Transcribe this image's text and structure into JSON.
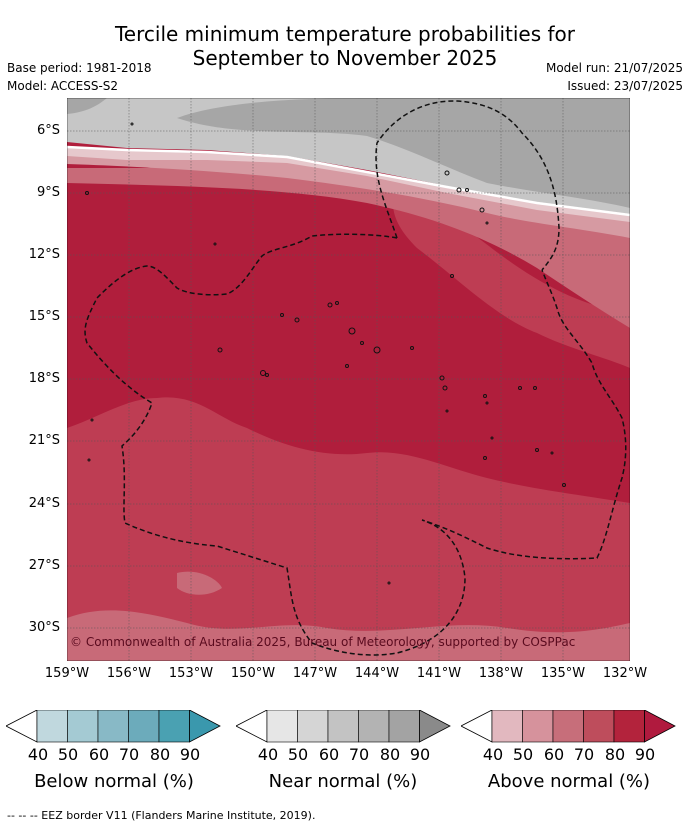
{
  "title_line1": "Tercile minimum temperature probabilities for",
  "title_line2": "September to November 2025",
  "base_period": "Base period: 1981-2018",
  "model": "Model: ACCESS-S2",
  "model_run": "Model run: 21/07/2025",
  "issued": "Issued: 23/07/2025",
  "copyright": "© Commonwealth of Australia 2025, Bureau of Meteorology, supported by COSPPac",
  "lat_labels": [
    "6°S",
    "9°S",
    "12°S",
    "15°S",
    "18°S",
    "21°S",
    "24°S",
    "27°S",
    "30°S"
  ],
  "lon_labels": [
    "159°W",
    "156°W",
    "153°W",
    "150°W",
    "147°W",
    "144°W",
    "141°W",
    "138°W",
    "135°W",
    "132°W"
  ],
  "colorbars": [
    {
      "label": "Below normal (%)",
      "ticks": [
        "40",
        "50",
        "60",
        "70",
        "80",
        "90"
      ],
      "colors": [
        "#ffffff",
        "#c0d8de",
        "#a4cad3",
        "#88b9c6",
        "#6cabbb",
        "#4aa1b2",
        "#3a98ad"
      ]
    },
    {
      "label": "Near normal (%)",
      "ticks": [
        "40",
        "50",
        "60",
        "70",
        "80",
        "90"
      ],
      "colors": [
        "#ffffff",
        "#e6e6e6",
        "#d5d5d5",
        "#c3c3c3",
        "#b3b3b3",
        "#a3a3a3",
        "#8a8a8a"
      ]
    },
    {
      "label": "Above normal (%)",
      "ticks": [
        "40",
        "50",
        "60",
        "70",
        "80",
        "90"
      ],
      "colors": [
        "#ffffff",
        "#e2b8bf",
        "#d6929c",
        "#c76e7a",
        "#be4d5c",
        "#b3233c",
        "#b01a3e"
      ]
    }
  ],
  "footer": "-- -- -- EEZ border V11 (Flanders Marine Institute, 2019).",
  "colors": {
    "above_80_90": "#b01e3c",
    "above_70_80": "#be3d53",
    "above_60_70": "#c86a78",
    "above_50_60": "#d69aa2",
    "near_60_70": "#c6c6c6",
    "near_70_80": "#a6a6a6"
  }
}
